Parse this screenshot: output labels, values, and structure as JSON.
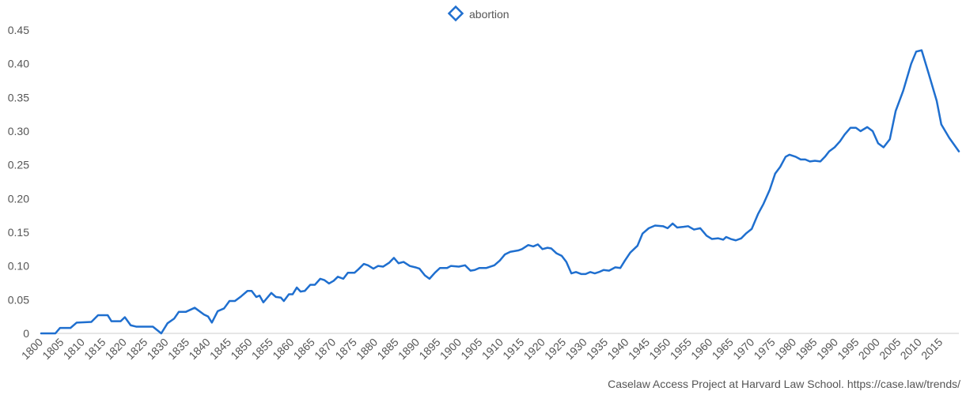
{
  "chart_data": {
    "type": "line",
    "source": "Caselaw Access Project at Harvard Law School. https://case.law/trends/",
    "x": [
      1800,
      1803.4,
      1804.5,
      1807,
      1808.5,
      1812,
      1813.6,
      1815.9,
      1816.8,
      1819,
      1820,
      1821.4,
      1822.7,
      1826.7,
      1828.7,
      1830.2,
      1831.8,
      1832.9,
      1834.6,
      1836.7,
      1838.9,
      1839.9,
      1840.8,
      1842.2,
      1843.7,
      1845,
      1846.3,
      1847.8,
      1849.3,
      1850.3,
      1851.4,
      1852.2,
      1853.1,
      1855,
      1856.1,
      1857.3,
      1858,
      1859.2,
      1860.1,
      1861.1,
      1862,
      1863,
      1864.3,
      1865.4,
      1866.7,
      1867.7,
      1868.8,
      1869.9,
      1870.9,
      1872.2,
      1873.3,
      1874.9,
      1875.8,
      1877.1,
      1878.1,
      1879.4,
      1880.5,
      1881.7,
      1883.2,
      1884.3,
      1885.4,
      1886.6,
      1888.1,
      1889.4,
      1890.4,
      1891.7,
      1892.8,
      1894.1,
      1895.3,
      1897,
      1897.9,
      1899.8,
      1901.3,
      1902.6,
      1903.6,
      1904.7,
      1906.4,
      1908.3,
      1909.6,
      1910.8,
      1912.1,
      1914,
      1914.9,
      1916.4,
      1917.6,
      1918.7,
      1919.8,
      1921,
      1921.9,
      1923.1,
      1924.4,
      1925.5,
      1926.7,
      1927.8,
      1929.1,
      1930.1,
      1931.2,
      1932.3,
      1933.3,
      1934.4,
      1935.7,
      1937.2,
      1938.4,
      1939.5,
      1940.8,
      1942.5,
      1943.7,
      1945.2,
      1946.7,
      1948.6,
      1949.7,
      1950.9,
      1952,
      1953.5,
      1954.6,
      1956,
      1957.5,
      1959,
      1960.3,
      1961.8,
      1963,
      1963.7,
      1964.8,
      1966,
      1967.3,
      1968.4,
      1969.8,
      1971.3,
      1972.6,
      1974.1,
      1975.4,
      1976.6,
      1977.9,
      1978.8,
      1980.3,
      1981.5,
      1982.6,
      1983.7,
      1984.9,
      1986.2,
      1987.3,
      1988.3,
      1989.6,
      1990.9,
      1992,
      1993.4,
      1994.7,
      1995.8,
      1997.4,
      1998.7,
      2000,
      2001.3,
      2002.8,
      2004.2,
      2006,
      2007.9,
      2009.1,
      2010.4,
      2012.1,
      2014,
      2015.1,
      2017,
      2019.3
    ],
    "series": [
      {
        "name": "abortion",
        "color": "#1f6fcf",
        "values": [
          0,
          0,
          0.008,
          0.008,
          0.016,
          0.017,
          0.027,
          0.027,
          0.018,
          0.018,
          0.024,
          0.012,
          0.01,
          0.01,
          0,
          0.015,
          0.022,
          0.032,
          0.032,
          0.038,
          0.028,
          0.025,
          0.016,
          0.033,
          0.037,
          0.048,
          0.048,
          0.055,
          0.063,
          0.063,
          0.054,
          0.056,
          0.046,
          0.06,
          0.054,
          0.053,
          0.048,
          0.058,
          0.058,
          0.068,
          0.062,
          0.063,
          0.072,
          0.072,
          0.081,
          0.079,
          0.074,
          0.078,
          0.084,
          0.081,
          0.09,
          0.09,
          0.095,
          0.103,
          0.101,
          0.096,
          0.1,
          0.099,
          0.105,
          0.112,
          0.104,
          0.106,
          0.1,
          0.098,
          0.096,
          0.086,
          0.081,
          0.09,
          0.097,
          0.097,
          0.1,
          0.099,
          0.101,
          0.093,
          0.094,
          0.097,
          0.097,
          0.101,
          0.108,
          0.117,
          0.121,
          0.123,
          0.125,
          0.131,
          0.129,
          0.132,
          0.125,
          0.127,
          0.126,
          0.119,
          0.115,
          0.106,
          0.089,
          0.091,
          0.088,
          0.088,
          0.091,
          0.089,
          0.091,
          0.094,
          0.093,
          0.098,
          0.097,
          0.108,
          0.12,
          0.13,
          0.148,
          0.156,
          0.16,
          0.159,
          0.156,
          0.163,
          0.157,
          0.158,
          0.159,
          0.154,
          0.156,
          0.145,
          0.14,
          0.141,
          0.139,
          0.143,
          0.14,
          0.138,
          0.141,
          0.148,
          0.155,
          0.177,
          0.192,
          0.213,
          0.237,
          0.247,
          0.262,
          0.265,
          0.262,
          0.258,
          0.258,
          0.255,
          0.256,
          0.255,
          0.262,
          0.27,
          0.276,
          0.285,
          0.295,
          0.305,
          0.305,
          0.3,
          0.306,
          0.3,
          0.282,
          0.276,
          0.288,
          0.33,
          0.36,
          0.4,
          0.418,
          0.42,
          0.385,
          0.345,
          0.31,
          0.29,
          0.27
        ]
      }
    ],
    "xlim": [
      1800,
      2019.3
    ],
    "xticks": [
      1800,
      1805,
      1810,
      1815,
      1820,
      1825,
      1830,
      1835,
      1840,
      1845,
      1850,
      1855,
      1860,
      1865,
      1870,
      1875,
      1880,
      1885,
      1890,
      1895,
      1900,
      1905,
      1910,
      1915,
      1920,
      1925,
      1930,
      1935,
      1940,
      1945,
      1950,
      1955,
      1960,
      1965,
      1970,
      1975,
      1980,
      1985,
      1990,
      1995,
      2000,
      2005,
      2010,
      2015
    ],
    "ylim": [
      0,
      0.45
    ],
    "yticks": [
      0,
      0.05,
      {
        "value": 0.1,
        "label": "0.10"
      },
      0.15,
      {
        "value": 0.2,
        "label": "0.20"
      },
      0.25,
      {
        "value": 0.3,
        "label": "0.30"
      },
      0.35,
      {
        "value": 0.4,
        "label": "0.40"
      },
      0.45
    ],
    "grid": false,
    "legend": "top"
  }
}
